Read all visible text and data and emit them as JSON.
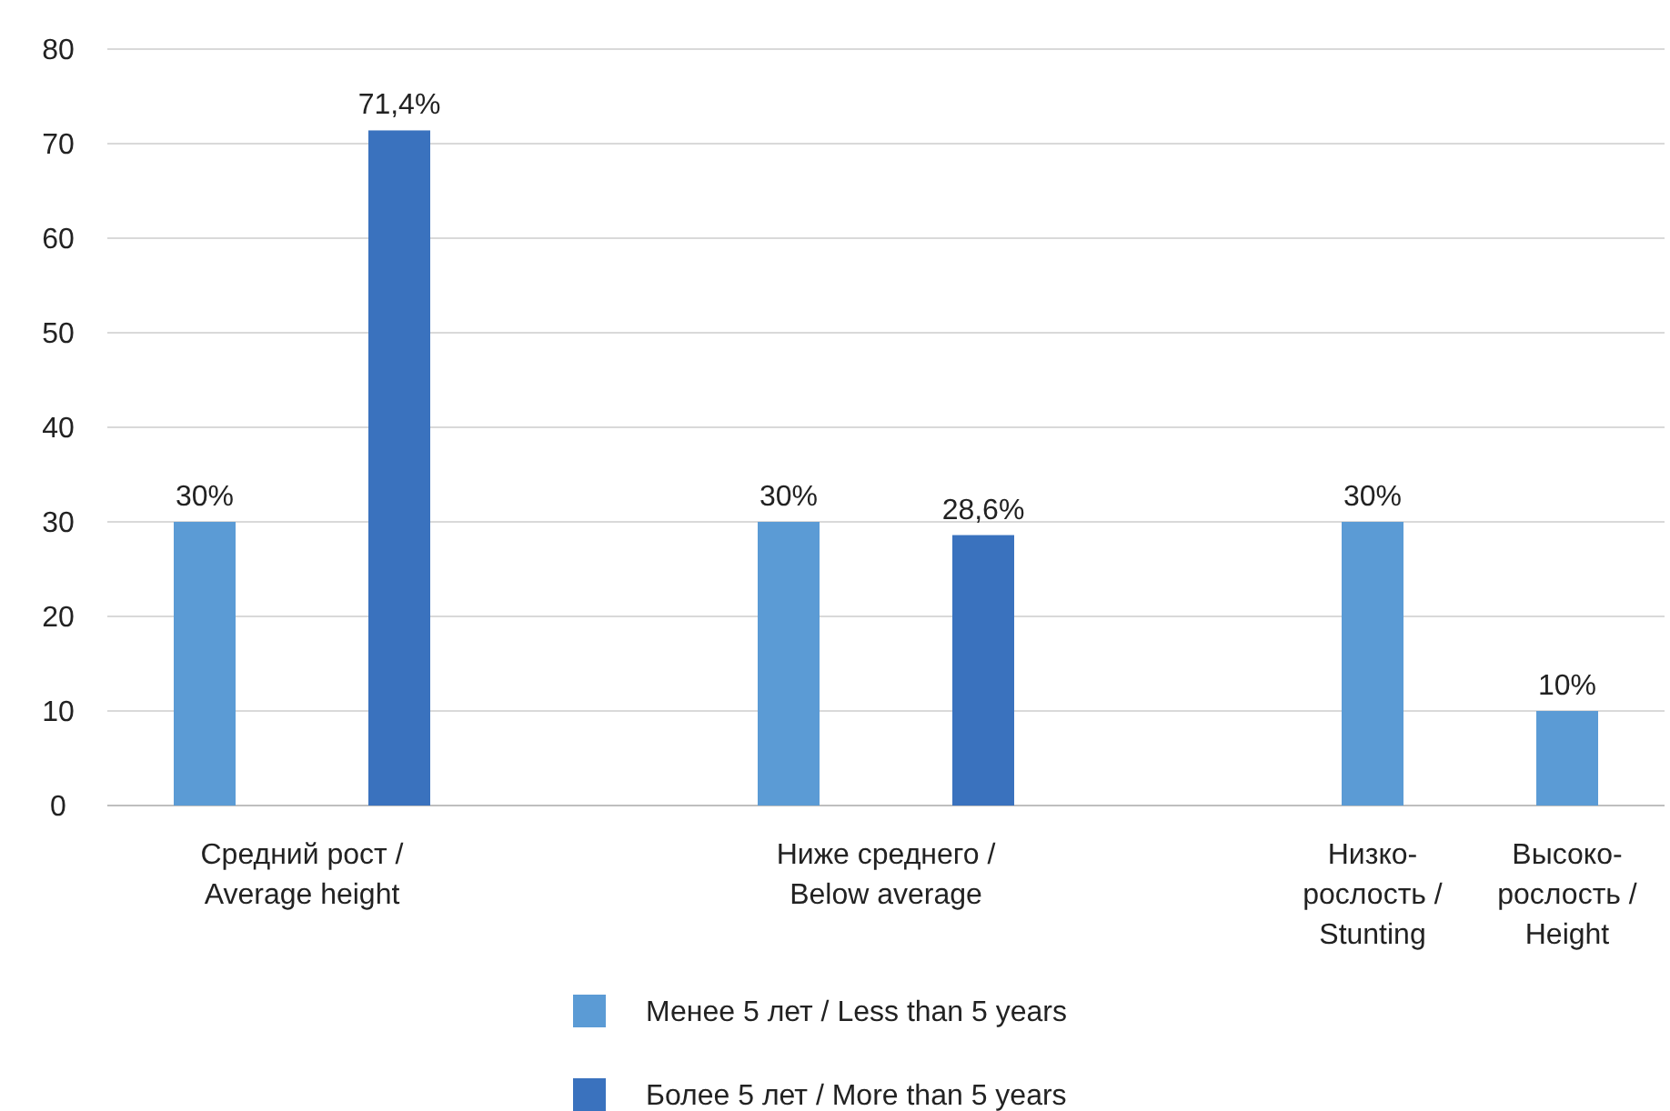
{
  "chart_data": {
    "type": "bar",
    "categories": [
      "Средний рост / Average height",
      "Ниже среднего / Below average",
      "Низко-рослость / Stunting",
      "Высоко-рослость / Height"
    ],
    "series": [
      {
        "name": "Менее 5 лет / Less than 5 years",
        "color": "#5b9bd5",
        "values": [
          30,
          30,
          30,
          10
        ],
        "value_labels": [
          "30%",
          "30%",
          "30%",
          "10%"
        ]
      },
      {
        "name": "Более 5 лет / More than 5 years",
        "color": "#3a72be",
        "values": [
          71.4,
          28.6,
          null,
          null
        ],
        "value_labels": [
          "71,4%",
          "28,6%",
          null,
          null
        ]
      }
    ],
    "ylim": [
      0,
      80
    ],
    "yticks": [
      0,
      10,
      20,
      30,
      40,
      50,
      60,
      70,
      80
    ],
    "grid": "y",
    "legend": "bottom"
  }
}
